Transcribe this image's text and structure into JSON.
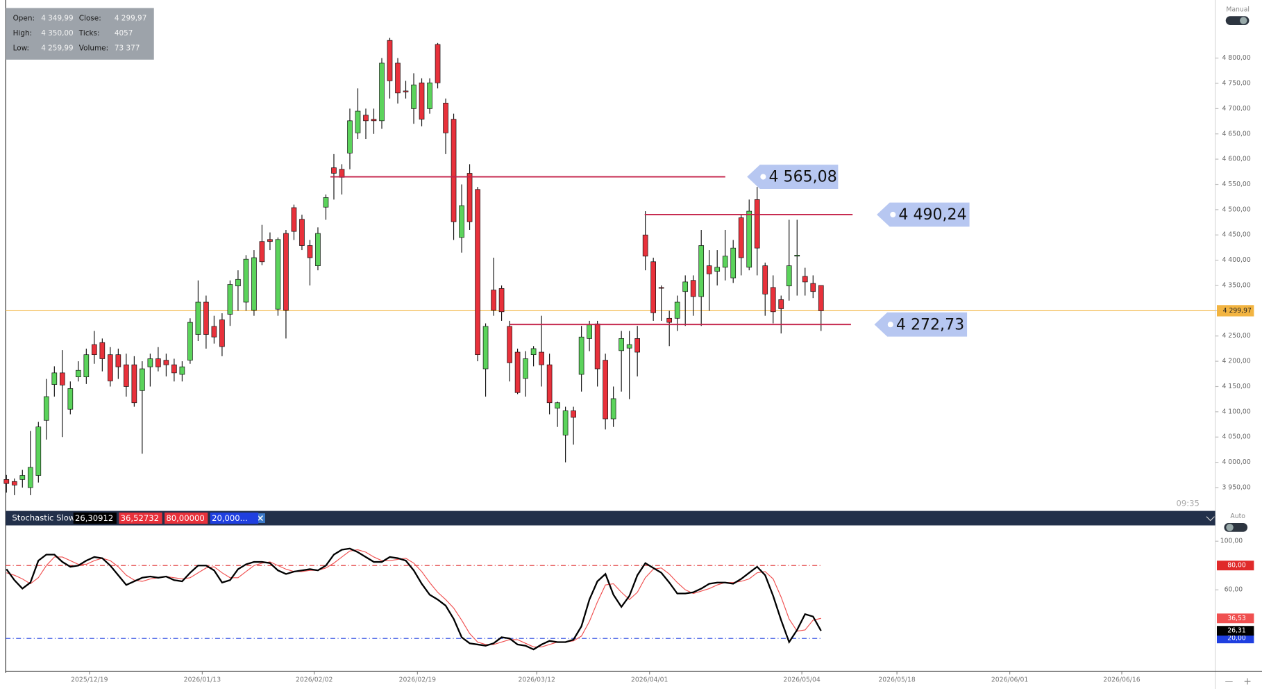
{
  "info": {
    "rows": [
      [
        "Open:",
        "4 349,99",
        "Close:",
        "4 299,97"
      ],
      [
        "High:",
        "4 350,00",
        "Ticks:",
        "4057"
      ],
      [
        "Low:",
        "4 259,99",
        "Volume:",
        "73 377"
      ]
    ]
  },
  "chart_data": [
    {
      "type": "candlestick",
      "mode": "Manual",
      "time": "09:35",
      "colors": {
        "up": "#5bd35b",
        "down": "#e8313b"
      },
      "ylim": [
        3907,
        4907
      ],
      "yticks": [
        {
          "value": 3950,
          "label": "3 950,00"
        },
        {
          "value": 4000,
          "label": "4 000,00"
        },
        {
          "value": 4050,
          "label": "4 050,00"
        },
        {
          "value": 4100,
          "label": "4 100,00"
        },
        {
          "value": 4150,
          "label": "4 150,00"
        },
        {
          "value": 4200,
          "label": "4 200,00"
        },
        {
          "value": 4250,
          "label": "4 250,00"
        },
        {
          "value": 4300,
          "label": "4 300,00"
        },
        {
          "value": 4350,
          "label": "4 350,00"
        },
        {
          "value": 4400,
          "label": "4 400,00"
        },
        {
          "value": 4450,
          "label": "4 450,00"
        },
        {
          "value": 4500,
          "label": "4 500,00"
        },
        {
          "value": 4550,
          "label": "4 550,00"
        },
        {
          "value": 4600,
          "label": "4 600,00"
        },
        {
          "value": 4650,
          "label": "4 650,00"
        },
        {
          "value": 4700,
          "label": "4 700,00"
        },
        {
          "value": 4750,
          "label": "4 750,00"
        },
        {
          "value": 4800,
          "label": "4 800,00"
        }
      ],
      "x_labels": [
        "2025/12/19",
        "2026/01/13",
        "2026/02/02",
        "2026/02/19",
        "2026/03/12",
        "2026/04/01",
        "2026/05/04",
        "2026/05/18",
        "2026/06/01",
        "2026/06/16"
      ],
      "hlines": [
        {
          "value": 4565.08,
          "label": "4 565,08",
          "color": "#c4234a"
        },
        {
          "value": 4490.24,
          "label": "4 490,24",
          "color": "#c4234a"
        },
        {
          "value": 4272.73,
          "label": "4 272,73",
          "color": "#c4234a"
        }
      ],
      "last_price": {
        "value": 4299.97,
        "label": "4 299,97",
        "color": "#f2b441"
      },
      "ohlc": [
        [
          3966,
          3975,
          3940,
          3958
        ],
        [
          3962,
          3968,
          3935,
          3955
        ],
        [
          3966,
          3985,
          3950,
          3974
        ],
        [
          3950,
          4062,
          3935,
          3990
        ],
        [
          3974,
          4080,
          3960,
          4070
        ],
        [
          4083,
          4165,
          4045,
          4130
        ],
        [
          4154,
          4190,
          4130,
          4177
        ],
        [
          4177,
          4222,
          4050,
          4153
        ],
        [
          4105,
          4160,
          4095,
          4146
        ],
        [
          4169,
          4200,
          4160,
          4182
        ],
        [
          4169,
          4225,
          4155,
          4213
        ],
        [
          4233,
          4260,
          4195,
          4213
        ],
        [
          4237,
          4245,
          4180,
          4205
        ],
        [
          4213,
          4228,
          4150,
          4161
        ],
        [
          4213,
          4225,
          4165,
          4189
        ],
        [
          4193,
          4215,
          4130,
          4150
        ],
        [
          4193,
          4210,
          4110,
          4118
        ],
        [
          4142,
          4200,
          4017,
          4185
        ],
        [
          4189,
          4215,
          4150,
          4205
        ],
        [
          4205,
          4228,
          4180,
          4189
        ],
        [
          4202,
          4215,
          4170,
          4193
        ],
        [
          4193,
          4205,
          4160,
          4177
        ],
        [
          4174,
          4200,
          4160,
          4189
        ],
        [
          4202,
          4285,
          4195,
          4277
        ],
        [
          4253,
          4360,
          4240,
          4317
        ],
        [
          4317,
          4330,
          4225,
          4253
        ],
        [
          4269,
          4290,
          4235,
          4248
        ],
        [
          4282,
          4295,
          4210,
          4229
        ],
        [
          4293,
          4360,
          4270,
          4352
        ],
        [
          4349,
          4380,
          4300,
          4362
        ],
        [
          4317,
          4410,
          4300,
          4402
        ],
        [
          4301,
          4420,
          4290,
          4405
        ],
        [
          4437,
          4470,
          4390,
          4397
        ],
        [
          4441,
          4455,
          4420,
          4437
        ],
        [
          4303,
          4445,
          4290,
          4441
        ],
        [
          4453,
          4460,
          4245,
          4301
        ],
        [
          4504,
          4510,
          4440,
          4457
        ],
        [
          4481,
          4490,
          4420,
          4429
        ],
        [
          4429,
          4440,
          4350,
          4405
        ],
        [
          4389,
          4465,
          4380,
          4453
        ],
        [
          4505,
          4530,
          4480,
          4524
        ],
        [
          4583,
          4610,
          4520,
          4572
        ],
        [
          4580,
          4590,
          4530,
          4564
        ],
        [
          4612,
          4700,
          4580,
          4676
        ],
        [
          4652,
          4740,
          4640,
          4695
        ],
        [
          4687,
          4700,
          4640,
          4676
        ],
        [
          4679,
          4700,
          4650,
          4676
        ],
        [
          4676,
          4800,
          4660,
          4790
        ],
        [
          4835,
          4840,
          4720,
          4755
        ],
        [
          4790,
          4800,
          4710,
          4731
        ],
        [
          4735,
          4755,
          4720,
          4733
        ],
        [
          4700,
          4770,
          4670,
          4747
        ],
        [
          4751,
          4760,
          4665,
          4679
        ],
        [
          4700,
          4760,
          4690,
          4751
        ],
        [
          4827,
          4830,
          4740,
          4751
        ],
        [
          4711,
          4720,
          4610,
          4652
        ],
        [
          4679,
          4690,
          4440,
          4476
        ],
        [
          4445,
          4550,
          4415,
          4508
        ],
        [
          4572,
          4590,
          4460,
          4476
        ],
        [
          4540,
          4545,
          4200,
          4213
        ],
        [
          4185,
          4275,
          4130,
          4269
        ],
        [
          4341,
          4405,
          4290,
          4301
        ],
        [
          4344,
          4350,
          4280,
          4298
        ],
        [
          4269,
          4280,
          4160,
          4197
        ],
        [
          4218,
          4225,
          4135,
          4138
        ],
        [
          4166,
          4220,
          4130,
          4205
        ],
        [
          4213,
          4230,
          4190,
          4225
        ],
        [
          4218,
          4290,
          4150,
          4193
        ],
        [
          4193,
          4215,
          4095,
          4118
        ],
        [
          4107,
          4120,
          4070,
          4118
        ],
        [
          4054,
          4110,
          4000,
          4102
        ],
        [
          4102,
          4110,
          4035,
          4089
        ],
        [
          4174,
          4270,
          4140,
          4248
        ],
        [
          4245,
          4280,
          4220,
          4272
        ],
        [
          4274,
          4280,
          4150,
          4185
        ],
        [
          4202,
          4215,
          4065,
          4086
        ],
        [
          4086,
          4150,
          4070,
          4126
        ],
        [
          4221,
          4260,
          4140,
          4245
        ],
        [
          4226,
          4260,
          4125,
          4233
        ],
        [
          4245,
          4270,
          4170,
          4218
        ],
        [
          4450,
          4497,
          4380,
          4408
        ],
        [
          4397,
          4405,
          4280,
          4296
        ],
        [
          4346,
          4350,
          4280,
          4345
        ],
        [
          4285,
          4300,
          4230,
          4277
        ],
        [
          4285,
          4330,
          4260,
          4317
        ],
        [
          4338,
          4370,
          4270,
          4357
        ],
        [
          4360,
          4370,
          4290,
          4328
        ],
        [
          4328,
          4460,
          4270,
          4429
        ],
        [
          4389,
          4420,
          4300,
          4373
        ],
        [
          4378,
          4420,
          4350,
          4386
        ],
        [
          4386,
          4460,
          4360,
          4408
        ],
        [
          4365,
          4440,
          4355,
          4424
        ],
        [
          4484,
          4490,
          4370,
          4405
        ],
        [
          4386,
          4520,
          4380,
          4497
        ],
        [
          4520,
          4545,
          4370,
          4424
        ],
        [
          4389,
          4395,
          4290,
          4333
        ],
        [
          4346,
          4370,
          4275,
          4298
        ],
        [
          4322,
          4330,
          4255,
          4304
        ],
        [
          4349,
          4480,
          4320,
          4389
        ],
        [
          4408,
          4480,
          4330,
          4410
        ],
        [
          4368,
          4385,
          4330,
          4357
        ],
        [
          4354,
          4370,
          4325,
          4338
        ],
        [
          4349.99,
          4350,
          4259.99,
          4299.97
        ]
      ]
    },
    {
      "type": "line",
      "title": "Stochastic Slow",
      "mode": "Auto",
      "params": [
        {
          "text": "26,30912",
          "color": "#000000"
        },
        {
          "text": "36,52732",
          "color": "#e8313b"
        },
        {
          "text": "80,00000",
          "color": "#e8313b"
        },
        {
          "text": "20,000...",
          "color": "#1f3fe0"
        }
      ],
      "ylim": [
        -7,
        113
      ],
      "yticks": [
        {
          "value": 100,
          "label": "100,00"
        },
        {
          "value": 60,
          "label": "60,00"
        }
      ],
      "hlines": [
        {
          "value": 80,
          "label": "80,00",
          "color": "#e02a2a"
        },
        {
          "value": 20,
          "label": "20,00",
          "color": "#1f3fe0"
        }
      ],
      "series": [
        {
          "color": "#000000",
          "last_label": "26,31",
          "values": [
            77,
            68,
            61,
            66,
            84,
            89,
            89,
            83,
            79,
            80,
            84,
            87,
            86,
            80,
            72,
            64,
            67,
            70,
            71,
            70,
            71,
            68,
            67,
            74,
            80,
            80,
            76,
            66,
            68,
            77,
            81,
            83,
            83,
            82,
            76,
            73,
            75,
            76,
            77,
            76,
            80,
            89,
            93,
            94,
            91,
            87,
            83,
            83,
            87,
            86,
            84,
            76,
            65,
            56,
            52,
            47,
            36,
            21,
            16,
            15,
            14,
            16,
            21,
            20,
            15,
            14,
            11,
            15,
            18,
            17,
            17,
            19,
            30,
            52,
            67,
            73,
            56,
            46,
            55,
            72,
            82,
            78,
            74,
            66,
            57,
            57,
            58,
            61,
            65,
            66,
            66,
            65,
            69,
            74,
            79,
            72,
            55,
            35,
            17,
            27,
            40,
            38,
            26.31
          ]
        },
        {
          "color": "#f05050",
          "last_label": "36,53",
          "values": [
            74,
            72,
            69,
            65,
            70,
            80,
            87,
            87,
            84,
            81,
            81,
            84,
            86,
            84,
            79,
            72,
            68,
            67,
            69,
            70,
            71,
            70,
            69,
            70,
            74,
            78,
            79,
            74,
            70,
            70,
            75,
            80,
            82,
            83,
            80,
            77,
            75,
            75,
            76,
            76,
            78,
            82,
            87,
            92,
            93,
            91,
            87,
            84,
            84,
            85,
            86,
            82,
            75,
            66,
            58,
            52,
            45,
            35,
            24,
            17,
            15,
            15,
            17,
            19,
            19,
            16,
            13,
            13,
            15,
            17,
            17,
            18,
            22,
            34,
            50,
            64,
            65,
            58,
            52,
            58,
            70,
            77,
            78,
            73,
            66,
            60,
            57,
            59,
            61,
            64,
            66,
            66,
            67,
            69,
            74,
            75,
            69,
            54,
            36,
            26,
            27,
            35,
            36.53
          ]
        }
      ]
    }
  ]
}
